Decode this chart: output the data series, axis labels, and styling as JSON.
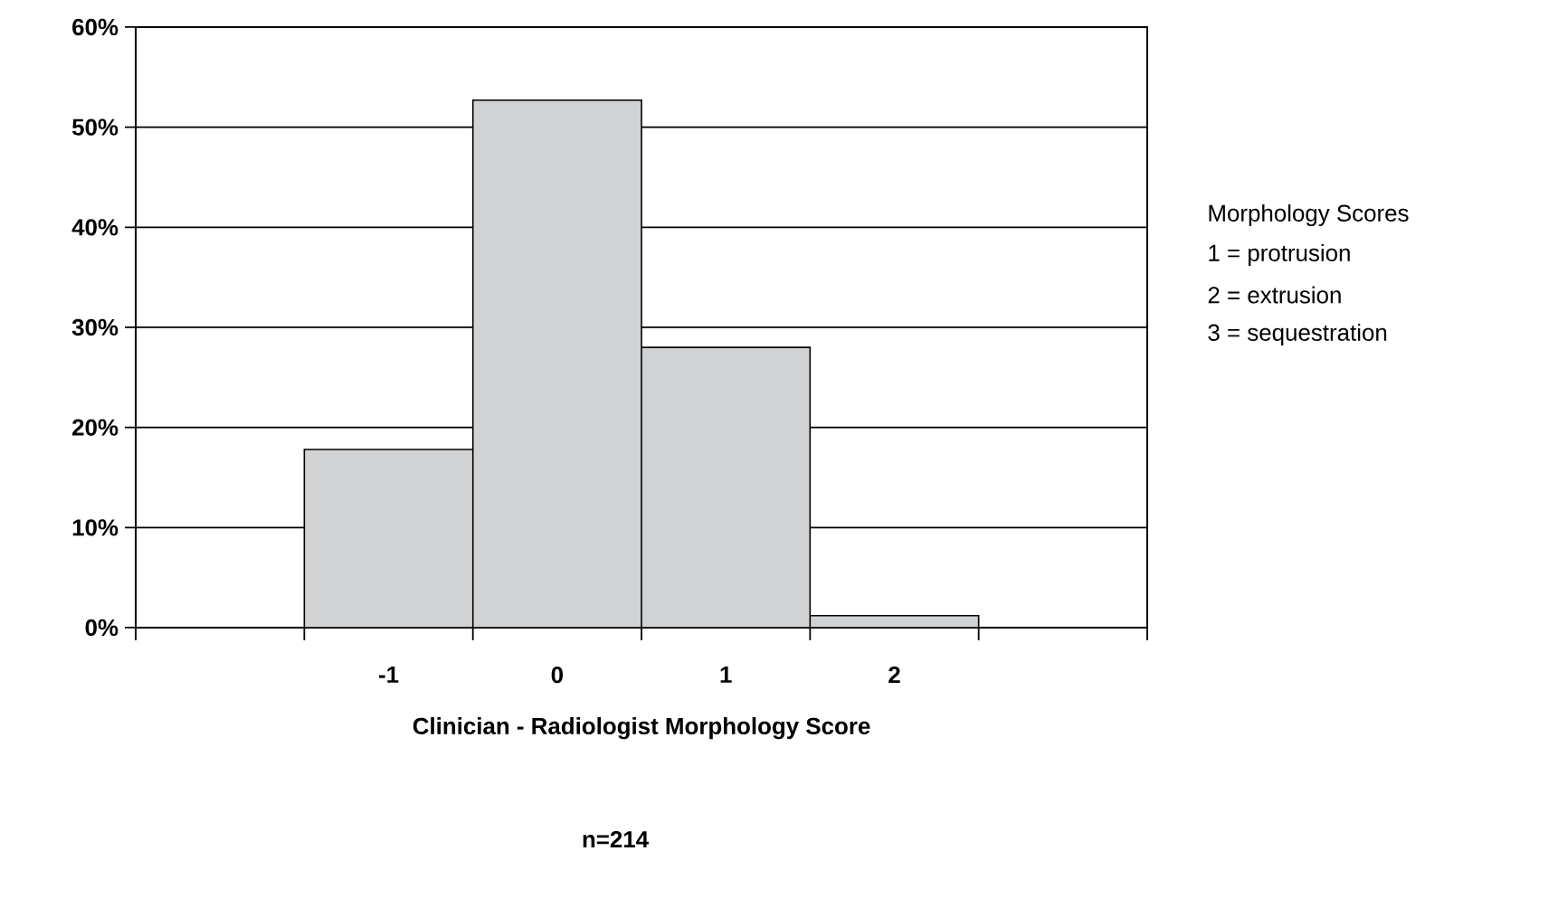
{
  "chart_data": {
    "type": "bar",
    "xlabel": "Clinician - Radiologist Morphology Score",
    "categories": [
      null,
      "-1",
      "0",
      "1",
      "2",
      null
    ],
    "values": [
      null,
      17.8,
      52.7,
      28,
      1.2,
      null
    ],
    "color": "#d0d2d4",
    "ylim": [
      0,
      60
    ],
    "yticks": [
      {
        "value": 0,
        "label": "0%"
      },
      {
        "value": 10,
        "label": "10%"
      },
      {
        "value": 20,
        "label": "20%"
      },
      {
        "value": 30,
        "label": "30%"
      },
      {
        "value": 40,
        "label": "40%"
      },
      {
        "value": 50,
        "label": "50%"
      },
      {
        "value": 60,
        "label": "60%"
      }
    ],
    "grid": "y",
    "annotations": [
      "Morphology Scores",
      "1 = protrusion",
      "2 = extrusion",
      "3 = sequestration",
      "n=214"
    ]
  }
}
